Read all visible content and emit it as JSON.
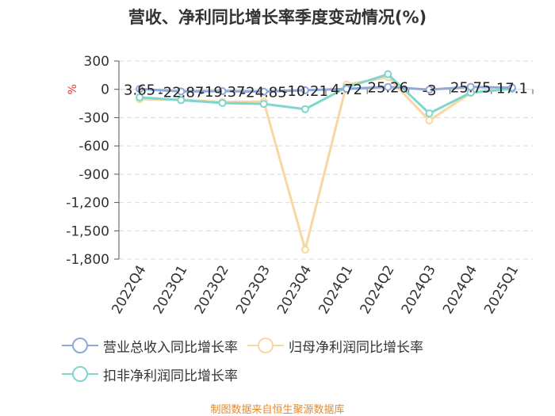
{
  "title": "营收、净利同比增长率季度变动情况(%)",
  "footer": "制图数据来自恒生聚源数据库",
  "chart_data": {
    "type": "line",
    "unit": "%",
    "categories": [
      "2022Q4",
      "2023Q1",
      "2023Q2",
      "2023Q3",
      "2023Q4",
      "2024Q1",
      "2024Q2",
      "2024Q3",
      "2024Q4",
      "2025Q1"
    ],
    "ylim": [
      -1800,
      300
    ],
    "yticks": [
      300,
      0,
      -300,
      -600,
      -900,
      -1200,
      -1500,
      -1800
    ],
    "ytick_labels": [
      "300",
      "0",
      "-300",
      "-600",
      "-900",
      "-1,200",
      "-1,500",
      "-1,800"
    ],
    "grid": true,
    "legend_position": "bottom",
    "series": [
      {
        "name": "营业总收入同比增长率",
        "color": "#8fa8d8",
        "values": [
          3.65,
          -22.87,
          -19.37,
          -24.85,
          -10.21,
          4.72,
          25.26,
          -3,
          25.75,
          17.1
        ],
        "labels": [
          "3.65",
          "-22.87",
          "-19.37",
          "-24.85",
          "-10.21",
          "4.72",
          "25.26",
          "-3",
          "25.75",
          "17.1"
        ]
      },
      {
        "name": "归母净利润同比增长率",
        "color": "#f8d7a0",
        "values": [
          -105,
          -110,
          -135,
          -130,
          -1700,
          50,
          130,
          -330,
          -40,
          10
        ]
      },
      {
        "name": "扣非净利润同比增长率",
        "color": "#7fd6cf",
        "values": [
          -85,
          -115,
          -145,
          -155,
          -210,
          20,
          160,
          -255,
          -35,
          5
        ]
      }
    ]
  }
}
